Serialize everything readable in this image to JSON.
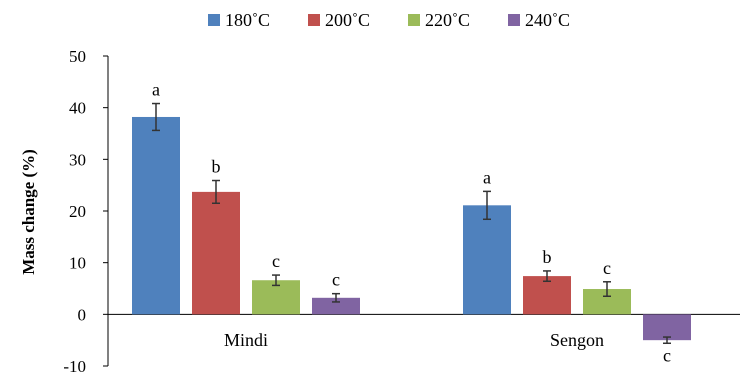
{
  "chart_data": {
    "type": "bar",
    "title": "",
    "xlabel": "",
    "ylabel": "Mass change (%)",
    "ylim": [
      -10,
      50
    ],
    "yticks": [
      -10,
      0,
      10,
      20,
      30,
      40,
      50
    ],
    "grid": false,
    "legend_position": "top",
    "categories": [
      "Mindi",
      "Sengon"
    ],
    "series": [
      {
        "name": "180˚C",
        "color": "#4f81bd",
        "values": [
          38.2,
          21.1
        ],
        "errors": [
          2.6,
          2.7
        ],
        "labels": [
          "a",
          "a"
        ]
      },
      {
        "name": "200˚C",
        "color": "#c0504d",
        "values": [
          23.7,
          7.4
        ],
        "errors": [
          2.2,
          1.0
        ],
        "labels": [
          "b",
          "b"
        ]
      },
      {
        "name": "220˚C",
        "color": "#9bbb59",
        "values": [
          6.6,
          4.9
        ],
        "errors": [
          1.0,
          1.4
        ],
        "labels": [
          "c",
          "c"
        ]
      },
      {
        "name": "240˚C",
        "color": "#8064a2",
        "values": [
          3.2,
          -5.0
        ],
        "errors": [
          0.8,
          0.6
        ],
        "labels": [
          "c",
          "c"
        ]
      }
    ]
  }
}
